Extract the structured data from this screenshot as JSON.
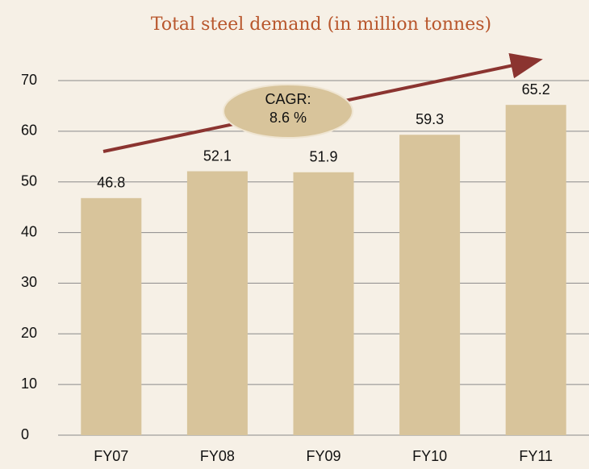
{
  "chart_data": {
    "type": "bar",
    "title": "Total steel demand (in million tonnes)",
    "categories": [
      "FY07",
      "FY08",
      "FY09",
      "FY10",
      "FY11"
    ],
    "values": [
      46.8,
      52.1,
      51.9,
      59.3,
      65.2
    ],
    "color": "#d8c49b",
    "ylim": [
      0,
      70
    ],
    "yticks": [
      0,
      10,
      20,
      30,
      40,
      50,
      60,
      70
    ],
    "grid": true,
    "annotation": [
      "CAGR:",
      "8.6 %"
    ]
  }
}
